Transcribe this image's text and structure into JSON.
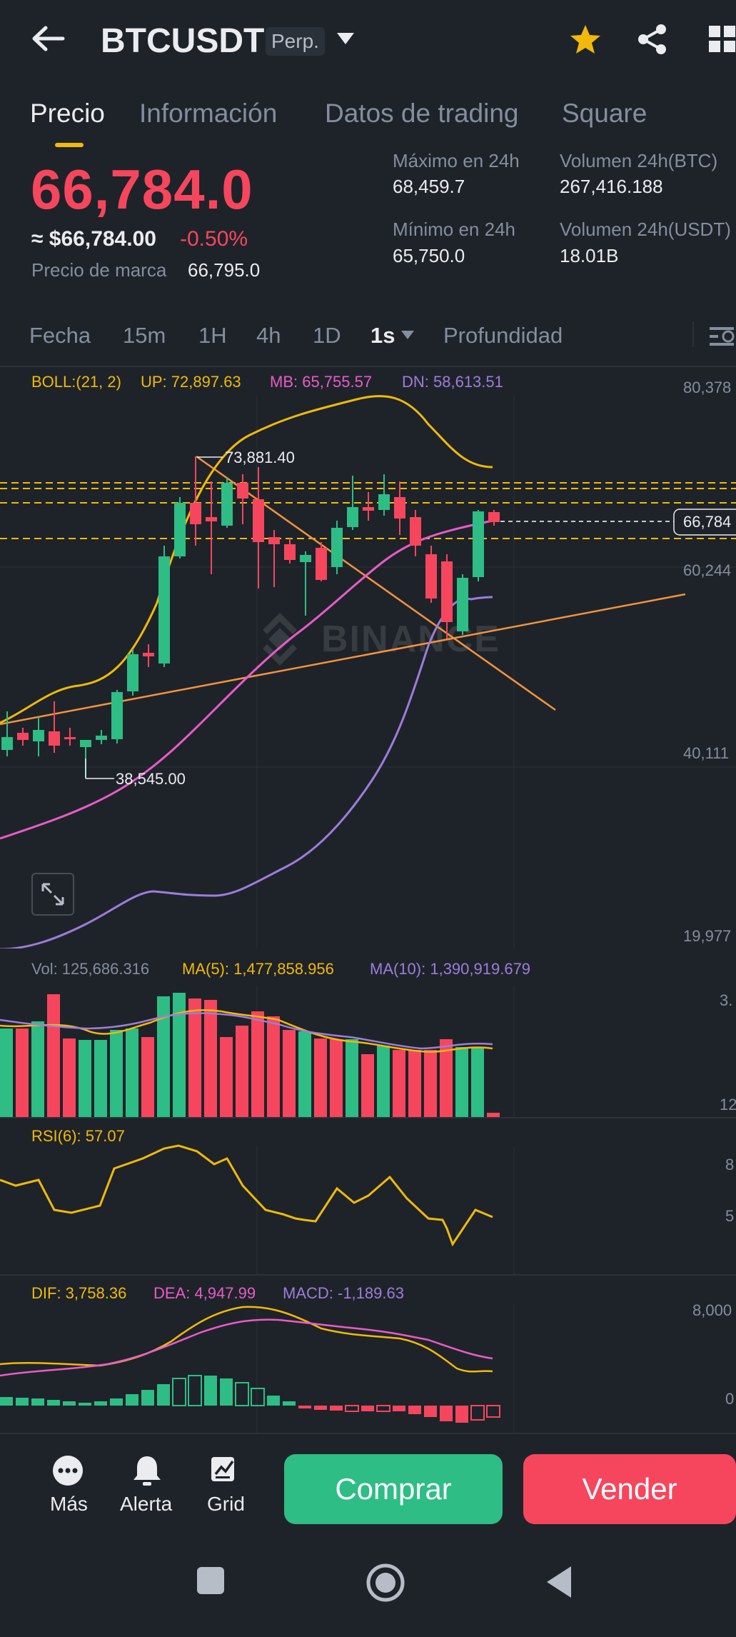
{
  "header": {
    "back_icon": "arrow-left-icon",
    "symbol": "BTCUSDT",
    "contract_type": "Perp.",
    "dropdown_icon": "caret-down-icon",
    "favorite_icon": "star-icon",
    "share_icon": "share-icon",
    "grid_icon": "grid-icon",
    "favorite_color": "#f0b90b"
  },
  "tabs": [
    {
      "label": "Precio",
      "active": true
    },
    {
      "label": "Información",
      "active": false
    },
    {
      "label": "Datos de trading",
      "active": false
    },
    {
      "label": "Square",
      "active": false
    }
  ],
  "price": {
    "last": "66,784.0",
    "usd": "≈ $66,784.00",
    "change": "-0.50%",
    "mark_label": "Precio de marca",
    "mark_value": "66,795.0",
    "down_color": "#f6465d",
    "up_color": "#2ebd85"
  },
  "stats": {
    "high_label": "Máximo en 24h",
    "high_value": "68,459.7",
    "low_label": "Mínimo en 24h",
    "low_value": "65,750.0",
    "vol_btc_label": "Volumen 24h(BTC)",
    "vol_btc_value": "267,416.188",
    "vol_usdt_label": "Volumen 24h(USDT)",
    "vol_usdt_value": "18.01B"
  },
  "intervals": {
    "items": [
      "Fecha",
      "15m",
      "1H",
      "4h",
      "1D",
      "1s",
      "Profundidad"
    ],
    "active": "1s",
    "settings_icon": "chart-settings-icon"
  },
  "main_chart": {
    "boll_label": "BOLL:(21, 2)",
    "up": "UP: 72,897.63",
    "mb": "MB: 65,755.57",
    "dn": "DN: 58,613.51",
    "axis_labels": [
      "80,378",
      "60,244",
      "40,111",
      "19,977"
    ],
    "current_price_tag": "66,784",
    "high_marker": "73,881.40",
    "low_marker": "38,545.00",
    "watermark": "BINANCE",
    "expand_icon": "expand-icon"
  },
  "volume": {
    "vol": "Vol: 125,686.316",
    "ma5": "MA(5): 1,477,858.956",
    "ma10": "MA(10): 1,390,919.679",
    "axis_top": "3.",
    "axis_bottom": "12"
  },
  "rsi": {
    "label": "RSI(6): 57.07",
    "axis_top": "8",
    "axis_mid": "5"
  },
  "macd": {
    "dif": "DIF: 3,758.36",
    "dea": "DEA: 4,947.99",
    "macd": "MACD: -1,189.63",
    "axis_top": "8,000",
    "axis_zero": "0"
  },
  "bottom_bar": {
    "more_label": "Más",
    "more_icon": "more-icon",
    "alert_label": "Alerta",
    "alert_icon": "bell-icon",
    "grid_label": "Grid",
    "grid_icon": "grid-bot-icon",
    "buy_label": "Comprar",
    "sell_label": "Vender"
  },
  "system_nav": {
    "recents_icon": "square-icon",
    "home_icon": "circle-icon",
    "back_icon": "triangle-back-icon"
  }
}
